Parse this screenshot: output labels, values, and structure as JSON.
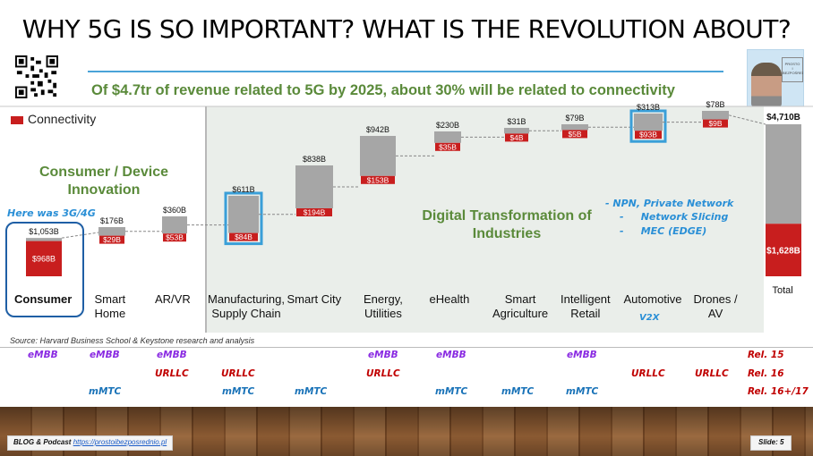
{
  "slide": {
    "title": "WHY 5G IS SO IMPORTANT? WHAT IS THE REVOLUTION ABOUT?",
    "subtitle": "Of $4.7tr of revenue related to 5G by 2025, about 30% will be related to connectivity",
    "source": "Source: Harvard Business School & Keystone research and analysis",
    "blog_label": "BLOG & Podcast",
    "blog_link": "https://prostoibezposrednio.pl",
    "slide_number": "Slide: 5",
    "photo_logo_text": "PROSTO I BEZPOŚREDNIO"
  },
  "annotations": {
    "legend_connectivity": "Connectivity",
    "here_was": "Here was 3G/4G",
    "consumer_group": "Consumer / Device\nInnovation",
    "digital_group": "Digital Transformation of\nIndustries",
    "npn": "- NPN, Private Network",
    "slicing": "-     Network Slicing",
    "mec": "-     MEC (EDGE)",
    "v2x": "V2X"
  },
  "colors": {
    "connectivity": "#c81e1e",
    "other": "#a6a6a6",
    "highlight": "#3a9fd8",
    "group_text": "#5a8a3a",
    "embb": "#8a2be2",
    "urllc": "#c00000",
    "mmtc": "#1a73b8"
  },
  "chart_data": {
    "type": "bar",
    "subtype": "waterfall",
    "unit": "$B",
    "categories": [
      "Consumer",
      "Smart\nHome",
      "AR/VR",
      "Manufacturing,\nSupply Chain",
      "Smart City",
      "Energy,\nUtilities",
      "eHealth",
      "Smart\nAgriculture",
      "Intelligent\nRetail",
      "Automotive",
      "Drones /\nAV",
      "Total"
    ],
    "series": [
      {
        "name": "Connectivity",
        "values": [
          968,
          29,
          53,
          84,
          194,
          153,
          35,
          4,
          5,
          93,
          9,
          1628
        ],
        "labels": [
          "$968B",
          "$29B",
          "$53B",
          "$84B",
          "$194B",
          "$153B",
          "$35B",
          "$4B",
          "$5B",
          "$93B",
          "$9B",
          "$1,628B"
        ]
      }
    ],
    "totals": [
      1053,
      176,
      360,
      611,
      838,
      942,
      230,
      31,
      79,
      313,
      78,
      4710
    ],
    "total_labels": [
      "$1,053B",
      "$176B",
      "$360B",
      "$611B",
      "$838B",
      "$942B",
      "$230B",
      "$31B",
      "$79B",
      "$313B",
      "$78B",
      "$4,710B"
    ],
    "highlighted": [
      "Manufacturing,\nSupply Chain",
      "Automotive"
    ],
    "ylim": [
      0,
      4710
    ],
    "grid": false,
    "legend": "top-left"
  },
  "requirements": {
    "rows": [
      {
        "label": "Rel. 15",
        "items": [
          {
            "col": 0,
            "text": "eMBB"
          },
          {
            "col": 1,
            "text": "eMBB"
          },
          {
            "col": 2,
            "text": "eMBB"
          },
          {
            "col": 5,
            "text": "eMBB"
          },
          {
            "col": 6,
            "text": "eMBB"
          },
          {
            "col": 8,
            "text": "eMBB"
          }
        ]
      },
      {
        "label": "Rel. 16",
        "items": [
          {
            "col": 2,
            "text": "URLLC"
          },
          {
            "col": 3,
            "text": "URLLC"
          },
          {
            "col": 5,
            "text": "URLLC"
          },
          {
            "col": 9,
            "text": "URLLC"
          },
          {
            "col": 10,
            "text": "URLLC"
          }
        ]
      },
      {
        "label": "Rel. 16+/17",
        "items": [
          {
            "col": 1,
            "text": "mMTC"
          },
          {
            "col": 3,
            "text": "mMTC"
          },
          {
            "col": 4,
            "text": "mMTC"
          },
          {
            "col": 6,
            "text": "mMTC"
          },
          {
            "col": 7,
            "text": "mMTC"
          },
          {
            "col": 8,
            "text": "mMTC"
          }
        ]
      }
    ]
  }
}
